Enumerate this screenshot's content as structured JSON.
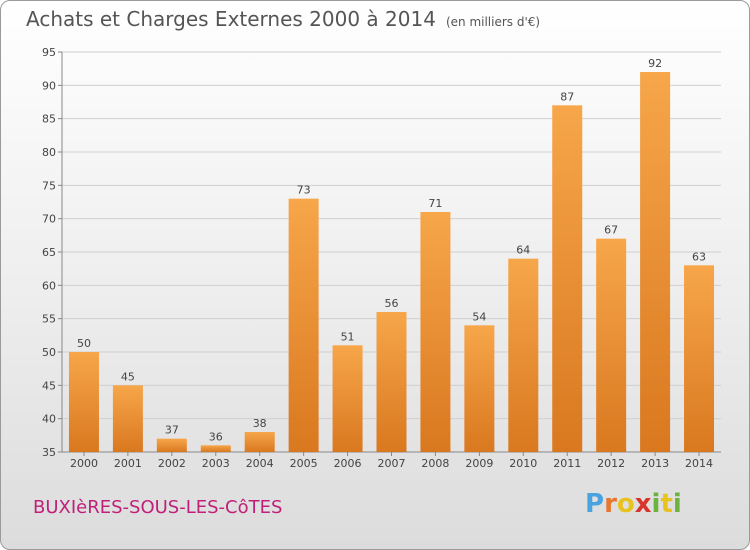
{
  "header": {
    "title": "Achats et Charges Externes 2000 à 2014",
    "unit": "(en milliers d'€)"
  },
  "footer": {
    "place": "BUXIèRES-SOUS-LES-CôTES",
    "logo_letters": [
      "P",
      "r",
      "o",
      "x",
      "i",
      "t",
      "i"
    ]
  },
  "colors": {
    "bar_light": "#f7a64a",
    "bar_dark": "#d9781f",
    "grid": "#d0d0d0",
    "place": "#c0207a"
  },
  "chart_data": {
    "type": "bar",
    "title": "Achats et Charges Externes 2000 à 2014",
    "subtitle": "(en milliers d'€)",
    "categories": [
      "2000",
      "2001",
      "2002",
      "2003",
      "2004",
      "2005",
      "2006",
      "2007",
      "2008",
      "2009",
      "2010",
      "2011",
      "2012",
      "2013",
      "2014"
    ],
    "values": [
      50,
      45,
      37,
      36,
      38,
      73,
      51,
      56,
      71,
      54,
      64,
      87,
      67,
      92,
      63
    ],
    "ylim": [
      35,
      95
    ],
    "yticks": [
      35,
      40,
      45,
      50,
      55,
      60,
      65,
      70,
      75,
      80,
      85,
      90,
      95
    ],
    "grid": true,
    "xlabel": "",
    "ylabel": ""
  }
}
